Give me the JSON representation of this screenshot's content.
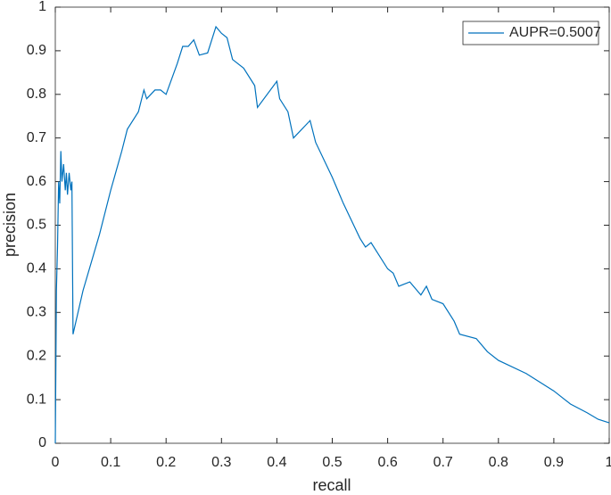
{
  "chart_data": {
    "type": "line",
    "xlabel": "recall",
    "ylabel": "precision",
    "x": [
      0,
      0.002,
      0.004,
      0.006,
      0.008,
      0.01,
      0.012,
      0.015,
      0.018,
      0.02,
      0.022,
      0.025,
      0.028,
      0.03,
      0.032,
      0.05,
      0.08,
      0.1,
      0.12,
      0.13,
      0.15,
      0.16,
      0.165,
      0.18,
      0.19,
      0.2,
      0.22,
      0.23,
      0.24,
      0.25,
      0.26,
      0.275,
      0.29,
      0.3,
      0.31,
      0.32,
      0.34,
      0.36,
      0.365,
      0.4,
      0.405,
      0.42,
      0.43,
      0.46,
      0.47,
      0.5,
      0.52,
      0.55,
      0.56,
      0.57,
      0.6,
      0.61,
      0.62,
      0.64,
      0.66,
      0.67,
      0.68,
      0.7,
      0.72,
      0.73,
      0.76,
      0.78,
      0.8,
      0.85,
      0.9,
      0.93,
      0.96,
      0.98,
      1
    ],
    "series": [
      {
        "name": "AUPR=0.5007",
        "color": "#0072bd",
        "values": [
          0,
          0.35,
          0.45,
          0.6,
          0.55,
          0.67,
          0.6,
          0.64,
          0.58,
          0.62,
          0.57,
          0.62,
          0.58,
          0.6,
          0.25,
          0.35,
          0.48,
          0.58,
          0.67,
          0.72,
          0.76,
          0.81,
          0.79,
          0.81,
          0.81,
          0.8,
          0.87,
          0.91,
          0.91,
          0.925,
          0.89,
          0.895,
          0.955,
          0.94,
          0.93,
          0.88,
          0.86,
          0.82,
          0.77,
          0.83,
          0.79,
          0.76,
          0.7,
          0.74,
          0.69,
          0.61,
          0.55,
          0.47,
          0.45,
          0.46,
          0.4,
          0.39,
          0.36,
          0.37,
          0.34,
          0.36,
          0.33,
          0.32,
          0.28,
          0.25,
          0.24,
          0.21,
          0.19,
          0.16,
          0.12,
          0.09,
          0.07,
          0.055,
          0.047
        ]
      }
    ],
    "xlim": [
      0,
      1
    ],
    "ylim": [
      0,
      1
    ],
    "xticks": [
      0,
      0.1,
      0.2,
      0.3,
      0.4,
      0.5,
      0.6,
      0.7,
      0.8,
      0.9,
      1
    ],
    "yticks": [
      0,
      0.1,
      0.2,
      0.3,
      0.4,
      0.5,
      0.6,
      0.7,
      0.8,
      0.9,
      1
    ],
    "legend": "northeast"
  }
}
